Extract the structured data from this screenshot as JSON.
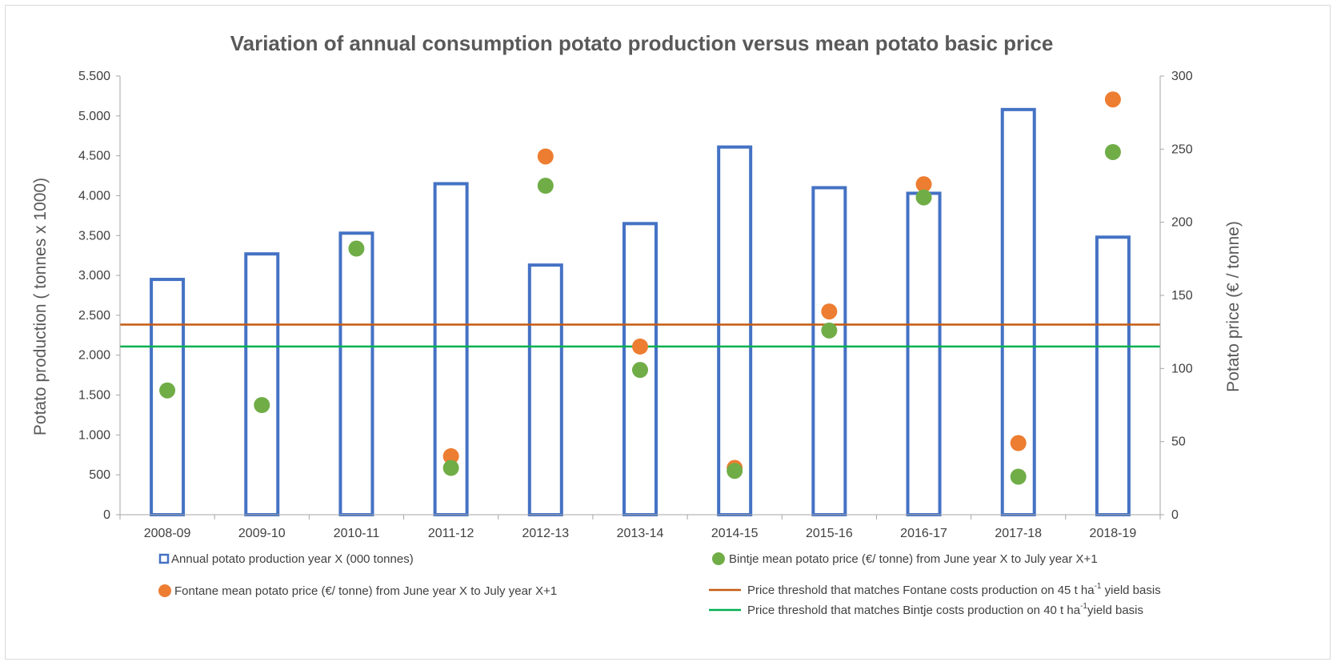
{
  "chart_data": {
    "type": "bar+scatter",
    "title": "Variation of annual consumption potato production versus mean potato basic price",
    "categories": [
      "2008-09",
      "2009-10",
      "2010-11",
      "2011-12",
      "2012-13",
      "2013-14",
      "2014-15",
      "2015-16",
      "2016-17",
      "2017-18",
      "2018-19"
    ],
    "y_left": {
      "label": "Potato production ( tonnes x 1000)",
      "range": [
        0,
        5500
      ],
      "ticks": [
        0,
        500,
        1000,
        1500,
        2000,
        2500,
        3000,
        3500,
        4000,
        4500,
        5000,
        5500
      ],
      "tick_labels": [
        "0",
        "500",
        "1.000",
        "1.500",
        "2.000",
        "2.500",
        "3.000",
        "3.500",
        "4.000",
        "4.500",
        "5.000",
        "5.500"
      ]
    },
    "y_right": {
      "label": "Potato price (€ / tonne)",
      "range": [
        0,
        300
      ],
      "ticks": [
        0,
        50,
        100,
        150,
        200,
        250,
        300
      ],
      "tick_labels": [
        "0",
        "50",
        "100",
        "150",
        "200",
        "250",
        "300"
      ]
    },
    "series": [
      {
        "name": "Annual potato production year X (000 tonnes)",
        "type": "bar",
        "axis": "left",
        "color": "#4472c4",
        "values": [
          2950,
          3270,
          3530,
          4150,
          3130,
          3650,
          4610,
          4100,
          4030,
          5080,
          3480
        ]
      },
      {
        "name": "Bintje mean potato price (€/ tonne) from June year X to July year X+1",
        "type": "scatter",
        "axis": "right",
        "color": "#70ad47",
        "values": [
          85,
          75,
          182,
          32,
          225,
          99,
          30,
          126,
          217,
          26,
          248
        ]
      },
      {
        "name": "Fontane mean potato price (€/ tonne) from June year X to July year X+1",
        "type": "scatter",
        "axis": "right",
        "color": "#ed7d31",
        "values": [
          null,
          null,
          null,
          40,
          245,
          115,
          32,
          139,
          226,
          49,
          284
        ]
      },
      {
        "name": "Price threshold that matches Fontane costs production on 45 t ha-1 yield basis",
        "legend_prefix": "Price threshold that matches  Fontane costs production on 45 t ha",
        "legend_sup": "-1",
        "legend_suffix": " yield basis",
        "type": "hline",
        "axis": "right",
        "color": "#c55a11",
        "value": 130
      },
      {
        "name": "Price threshold that matches Bintje costs production on 40 t ha-1 yield basis",
        "legend_prefix": "Price threshold that matches  Bintje costs production on 40 t ha",
        "legend_sup": "-1",
        "legend_suffix": "yield basis",
        "type": "hline",
        "axis": "right",
        "color": "#00b050",
        "value": 115
      }
    ],
    "legend_position": "bottom",
    "grid": false
  }
}
